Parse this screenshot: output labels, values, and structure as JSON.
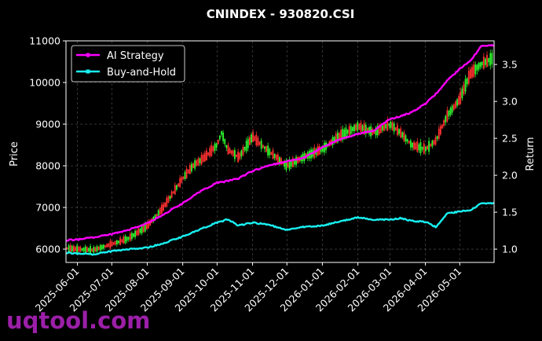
{
  "chart_data": {
    "type": "line",
    "title": "CNINDEX - 930820.CSI",
    "ylabel": "Price",
    "y2label": "Return",
    "x_ticks": [
      "2025-06-01",
      "2025-07-01",
      "2025-08-01",
      "2025-09-01",
      "2025-10-01",
      "2025-11-01",
      "2025-12-01",
      "2026-01-01",
      "2026-02-01",
      "2026-03-01",
      "2026-04-01",
      "2026-05-01"
    ],
    "x_range": [
      "2025-05-22",
      "2026-05-31"
    ],
    "y_ticks": [
      6000,
      7000,
      8000,
      9000,
      10000,
      11000
    ],
    "ylim": [
      5680,
      11000
    ],
    "y2_ticks": [
      1.0,
      1.5,
      2.0,
      2.5,
      3.0,
      3.5
    ],
    "y2lim": [
      0.82,
      3.82
    ],
    "grid": true,
    "legend": {
      "placement": "top-left",
      "entries": [
        "AI Strategy",
        "Buy-and-Hold"
      ]
    },
    "colors": {
      "ai_strategy": "#ff00ff",
      "buy_and_hold": "#19f0f0",
      "up": "#2ff52f",
      "down": "#ff3030",
      "background": "#000000"
    },
    "series": [
      {
        "name": "AI Strategy",
        "axis": "right",
        "x": [
          "2025-05-22",
          "2025-06-01",
          "2025-06-15",
          "2025-07-01",
          "2025-07-15",
          "2025-08-01",
          "2025-08-15",
          "2025-09-01",
          "2025-09-15",
          "2025-10-01",
          "2025-10-10",
          "2025-10-20",
          "2025-11-01",
          "2025-11-15",
          "2025-12-01",
          "2025-12-15",
          "2026-01-01",
          "2026-01-15",
          "2026-02-01",
          "2026-02-15",
          "2026-03-01",
          "2026-03-10",
          "2026-03-20",
          "2026-04-01",
          "2026-04-10",
          "2026-04-20",
          "2026-05-01",
          "2026-05-10",
          "2026-05-20",
          "2026-05-31"
        ],
        "values": [
          1.12,
          1.13,
          1.16,
          1.2,
          1.26,
          1.35,
          1.47,
          1.62,
          1.77,
          1.9,
          1.92,
          1.96,
          2.06,
          2.13,
          2.19,
          2.23,
          2.38,
          2.48,
          2.56,
          2.61,
          2.76,
          2.8,
          2.85,
          2.97,
          3.1,
          3.28,
          3.44,
          3.55,
          3.75,
          3.76
        ]
      },
      {
        "name": "Buy-and-Hold",
        "axis": "right",
        "x": [
          "2025-05-22",
          "2025-06-01",
          "2025-06-15",
          "2025-07-01",
          "2025-07-15",
          "2025-08-01",
          "2025-08-15",
          "2025-09-01",
          "2025-09-15",
          "2025-10-01",
          "2025-10-10",
          "2025-10-20",
          "2025-11-01",
          "2025-11-15",
          "2025-12-01",
          "2025-12-15",
          "2026-01-01",
          "2026-01-15",
          "2026-02-01",
          "2026-02-15",
          "2026-03-01",
          "2026-03-10",
          "2026-03-20",
          "2026-04-01",
          "2026-04-10",
          "2026-04-20",
          "2026-05-01",
          "2026-05-10",
          "2026-05-20",
          "2026-05-31"
        ],
        "values": [
          0.95,
          0.94,
          0.93,
          0.97,
          1.0,
          1.02,
          1.08,
          1.17,
          1.26,
          1.36,
          1.4,
          1.32,
          1.36,
          1.33,
          1.26,
          1.3,
          1.32,
          1.37,
          1.43,
          1.4,
          1.4,
          1.42,
          1.38,
          1.37,
          1.3,
          1.48,
          1.51,
          1.53,
          1.62,
          1.62
        ]
      },
      {
        "name": "Price",
        "axis": "left",
        "type": "candlestick",
        "x": [
          "2025-05-22",
          "2025-06-01",
          "2025-06-15",
          "2025-07-01",
          "2025-07-15",
          "2025-08-01",
          "2025-08-15",
          "2025-09-01",
          "2025-09-10",
          "2025-09-20",
          "2025-10-01",
          "2025-10-05",
          "2025-10-10",
          "2025-10-20",
          "2025-11-01",
          "2025-11-15",
          "2025-12-01",
          "2025-12-15",
          "2026-01-01",
          "2026-01-15",
          "2026-02-01",
          "2026-02-15",
          "2026-03-01",
          "2026-03-10",
          "2026-03-20",
          "2026-04-01",
          "2026-04-10",
          "2026-04-20",
          "2026-05-01",
          "2026-05-10",
          "2026-05-20",
          "2026-05-31"
        ],
        "values": [
          6020,
          6000,
          5980,
          6120,
          6250,
          6550,
          7000,
          7700,
          8000,
          8200,
          8500,
          8800,
          8400,
          8200,
          8700,
          8350,
          8000,
          8200,
          8400,
          8700,
          8950,
          8800,
          9000,
          8800,
          8500,
          8400,
          8600,
          9200,
          9600,
          10200,
          10450,
          10600
        ]
      }
    ]
  },
  "watermark": "uqtool.com"
}
